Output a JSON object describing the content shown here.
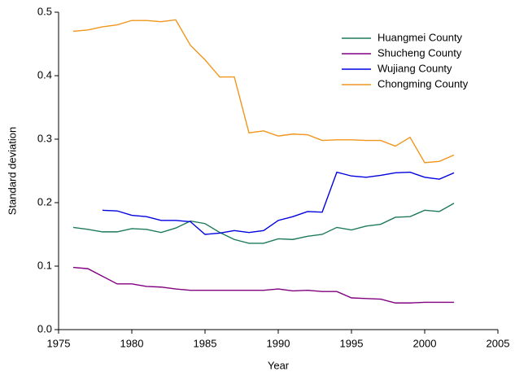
{
  "chart_data": {
    "type": "line",
    "x_label": "Year",
    "y_label": "Standard deviation",
    "x": [
      1976,
      1977,
      1978,
      1979,
      1980,
      1981,
      1982,
      1983,
      1984,
      1985,
      1986,
      1987,
      1988,
      1989,
      1990,
      1991,
      1992,
      1993,
      1994,
      1995,
      1996,
      1997,
      1998,
      1999,
      2000,
      2001,
      2002
    ],
    "series": [
      {
        "name": "Huangmei County",
        "color": "#1f7a5c",
        "values": [
          0.161,
          0.158,
          0.154,
          0.154,
          0.159,
          0.158,
          0.153,
          0.16,
          0.171,
          0.167,
          0.153,
          0.142,
          0.136,
          0.136,
          0.143,
          0.142,
          0.147,
          0.15,
          0.161,
          0.157,
          0.163,
          0.166,
          0.177,
          0.178,
          0.188,
          0.186,
          0.199
        ]
      },
      {
        "name": "Shucheng County",
        "color": "#800080",
        "values": [
          0.098,
          0.096,
          0.084,
          0.072,
          0.072,
          0.068,
          0.067,
          0.064,
          0.062,
          0.062,
          0.062,
          0.062,
          0.062,
          0.062,
          0.064,
          0.061,
          0.062,
          0.06,
          0.06,
          0.05,
          0.049,
          0.048,
          0.042,
          0.042,
          0.043,
          0.043,
          0.043
        ]
      },
      {
        "name": "Wujiang County",
        "color": "#0000e0",
        "values": [
          null,
          null,
          0.188,
          0.187,
          0.18,
          0.178,
          0.172,
          0.172,
          0.17,
          0.15,
          0.152,
          0.156,
          0.153,
          0.156,
          0.172,
          0.178,
          0.186,
          0.185,
          0.248,
          0.242,
          0.24,
          0.243,
          0.247,
          0.248,
          0.24,
          0.237,
          0.247
        ]
      },
      {
        "name": "Chongming County",
        "color": "#f0961e",
        "values": [
          0.47,
          0.472,
          0.477,
          0.48,
          0.487,
          0.487,
          0.485,
          0.488,
          0.448,
          0.425,
          0.398,
          0.398,
          0.31,
          0.313,
          0.305,
          0.308,
          0.307,
          0.298,
          0.299,
          0.299,
          0.298,
          0.298,
          0.289,
          0.303,
          0.263,
          0.265,
          0.275
        ]
      }
    ],
    "xlim": [
      1975,
      2005
    ],
    "xticks": [
      1975,
      1980,
      1985,
      1990,
      1995,
      2000,
      2005
    ],
    "ylim": [
      0,
      0.5
    ],
    "yticks": [
      {
        "value": 0,
        "label": "0.0"
      },
      0.1,
      0.2,
      0.3,
      0.4,
      0.5
    ],
    "legend": "upper right"
  }
}
